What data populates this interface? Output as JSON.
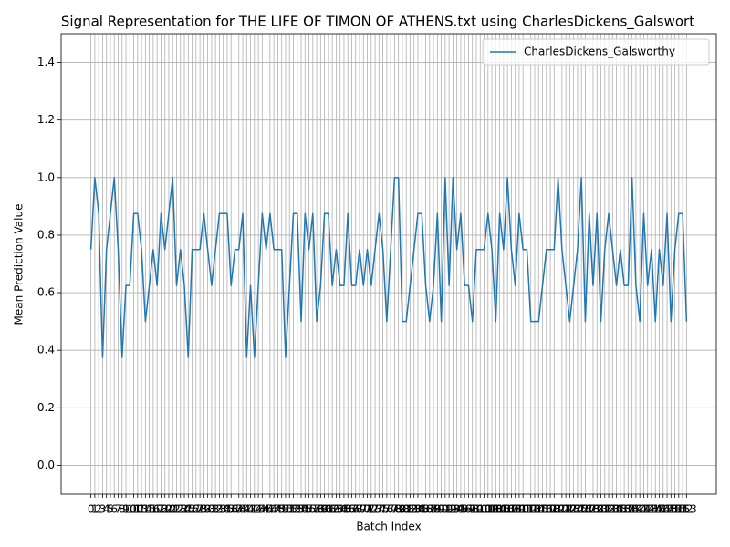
{
  "chart_data": {
    "type": "line",
    "title": "Signal Representation for THE LIFE OF TIMON OF ATHENS.txt using CharlesDickens_Galswort",
    "x_label": "Batch Index",
    "y_label": "Mean Prediction Value",
    "x": [
      0,
      1,
      2,
      3,
      4,
      5,
      6,
      7,
      8,
      9,
      10,
      11,
      12,
      13,
      14,
      15,
      16,
      17,
      18,
      19,
      20,
      21,
      22,
      23,
      24,
      25,
      26,
      27,
      28,
      29,
      30,
      31,
      32,
      33,
      34,
      35,
      36,
      37,
      38,
      39,
      40,
      41,
      42,
      43,
      44,
      45,
      46,
      47,
      48,
      49,
      50,
      51,
      52,
      53,
      54,
      55,
      56,
      57,
      58,
      59,
      60,
      61,
      62,
      63,
      64,
      65,
      66,
      67,
      68,
      69,
      70,
      71,
      72,
      73,
      74,
      75,
      76,
      77,
      78,
      79,
      80,
      81,
      82,
      83,
      84,
      85,
      86,
      87,
      88,
      89,
      90,
      91,
      92,
      93,
      94,
      95,
      96,
      97,
      98,
      99,
      100,
      101,
      102,
      103,
      104,
      105,
      106,
      107,
      108,
      109,
      110,
      111,
      112,
      113,
      114,
      115,
      116,
      117,
      118,
      119,
      120,
      121,
      122,
      123,
      124,
      125,
      126,
      127,
      128,
      129,
      130,
      131,
      132,
      133,
      134,
      135,
      136,
      137,
      138,
      139,
      140,
      141,
      142,
      143,
      144,
      145,
      146,
      147,
      148,
      149,
      150,
      151,
      152,
      153
    ],
    "series": [
      {
        "name": "CharlesDickens_Galsworthy",
        "color": "#1f77b4",
        "values": [
          0.75,
          1.0,
          0.875,
          0.375,
          0.75,
          0.875,
          1.0,
          0.75,
          0.375,
          0.625,
          0.625,
          0.875,
          0.875,
          0.75,
          0.5,
          0.625,
          0.75,
          0.625,
          0.875,
          0.75,
          0.875,
          1.0,
          0.625,
          0.75,
          0.625,
          0.375,
          0.75,
          0.75,
          0.75,
          0.875,
          0.75,
          0.625,
          0.75,
          0.875,
          0.875,
          0.875,
          0.625,
          0.75,
          0.75,
          0.875,
          0.375,
          0.625,
          0.375,
          0.625,
          0.875,
          0.75,
          0.875,
          0.75,
          0.75,
          0.75,
          0.375,
          0.625,
          0.875,
          0.875,
          0.5,
          0.875,
          0.75,
          0.875,
          0.5,
          0.625,
          0.875,
          0.875,
          0.625,
          0.75,
          0.625,
          0.625,
          0.875,
          0.625,
          0.625,
          0.75,
          0.625,
          0.75,
          0.625,
          0.75,
          0.875,
          0.75,
          0.5,
          0.75,
          1.0,
          1.0,
          0.5,
          0.5,
          0.625,
          0.75,
          0.875,
          0.875,
          0.625,
          0.5,
          0.625,
          0.875,
          0.5,
          1.0,
          0.625,
          1.0,
          0.75,
          0.875,
          0.625,
          0.625,
          0.5,
          0.75,
          0.75,
          0.75,
          0.875,
          0.75,
          0.5,
          0.875,
          0.75,
          1.0,
          0.75,
          0.625,
          0.875,
          0.75,
          0.75,
          0.5,
          0.5,
          0.5,
          0.625,
          0.75,
          0.75,
          0.75,
          1.0,
          0.75,
          0.625,
          0.5,
          0.625,
          0.75,
          1.0,
          0.5,
          0.875,
          0.625,
          0.875,
          0.5,
          0.75,
          0.875,
          0.75,
          0.625,
          0.75,
          0.625,
          0.625,
          1.0,
          0.625,
          0.5,
          0.875,
          0.625,
          0.75,
          0.5,
          0.75,
          0.625,
          0.875,
          0.5,
          0.75,
          0.875,
          0.875,
          0.5
        ]
      }
    ],
    "xlim": [
      -7.65,
      160.65
    ],
    "xticks": [
      0,
      1,
      2,
      3,
      4,
      5,
      6,
      7,
      8,
      9,
      10,
      11,
      12,
      13,
      14,
      15,
      16,
      17,
      18,
      19,
      20,
      21,
      22,
      23,
      24,
      25,
      26,
      27,
      28,
      29,
      30,
      31,
      32,
      33,
      34,
      35,
      36,
      37,
      38,
      39,
      40,
      41,
      42,
      43,
      44,
      45,
      46,
      47,
      48,
      49,
      50,
      51,
      52,
      53,
      54,
      55,
      56,
      57,
      58,
      59,
      60,
      61,
      62,
      63,
      64,
      65,
      66,
      67,
      68,
      69,
      70,
      71,
      72,
      73,
      74,
      75,
      76,
      77,
      78,
      79,
      80,
      81,
      82,
      83,
      84,
      85,
      86,
      87,
      88,
      89,
      90,
      91,
      92,
      93,
      94,
      95,
      96,
      97,
      98,
      99,
      100,
      101,
      102,
      103,
      104,
      105,
      106,
      107,
      108,
      109,
      110,
      111,
      112,
      113,
      114,
      115,
      116,
      117,
      118,
      119,
      120,
      121,
      122,
      123,
      124,
      125,
      126,
      127,
      128,
      129,
      130,
      131,
      132,
      133,
      134,
      135,
      136,
      137,
      138,
      139,
      140,
      141,
      142,
      143,
      144,
      145,
      146,
      147,
      148,
      149,
      150,
      151,
      152,
      153
    ],
    "ylim": [
      -0.1,
      1.5
    ],
    "yticks": [
      {
        "value": 0,
        "label": "0.0"
      },
      {
        "value": 0.2,
        "label": "0.2"
      },
      {
        "value": 0.4,
        "label": "0.4"
      },
      {
        "value": 0.6,
        "label": "0.6"
      },
      {
        "value": 0.8,
        "label": "0.8"
      },
      {
        "value": 1.0,
        "label": "1.0"
      },
      {
        "value": 1.2,
        "label": "1.2"
      },
      {
        "value": 1.4,
        "label": "1.4"
      }
    ],
    "grid": true,
    "legend": "upper right"
  }
}
